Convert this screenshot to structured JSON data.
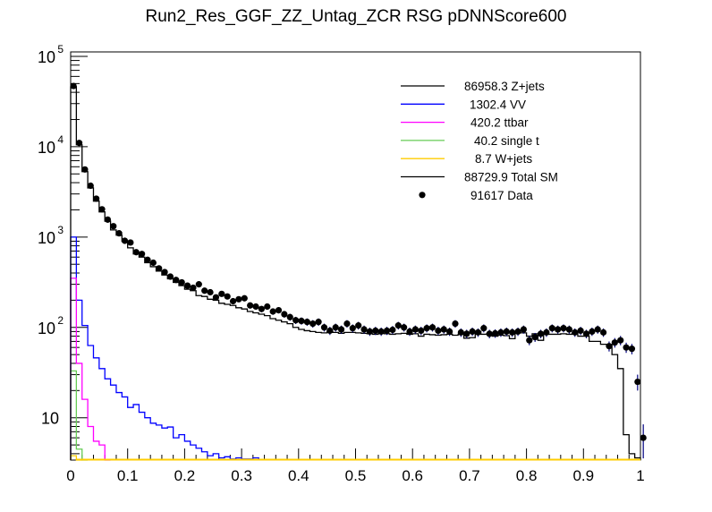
{
  "chart_data": {
    "type": "histogram",
    "title": "Run2_Res_GGF_ZZ_Untag_ZCR RSG  pDNNScore600",
    "xlabel": "",
    "ylabel": "",
    "xlim": [
      0,
      1
    ],
    "ylim": [
      3.4,
      112000
    ],
    "yscale": "log",
    "bin_width": 0.01,
    "x_ticks": [
      "0",
      "0.1",
      "0.2",
      "0.3",
      "0.4",
      "0.5",
      "0.6",
      "0.7",
      "0.8",
      "0.9",
      "1"
    ],
    "y_ticks": [
      {
        "base": "10",
        "exp": "5"
      },
      {
        "base": "10",
        "exp": "4"
      },
      {
        "base": "10",
        "exp": "3"
      },
      {
        "base": "10",
        "exp": "2"
      },
      {
        "base": "10",
        "exp": ""
      }
    ],
    "legend_position": "top-right",
    "legend": [
      {
        "label": "86958.3 Z+jets",
        "color": "#000000",
        "kind": "line"
      },
      {
        "label": "1302.4 VV",
        "color": "#0000ff",
        "kind": "line"
      },
      {
        "label": "420.2 ttbar",
        "color": "#ff00ff",
        "kind": "line"
      },
      {
        "label": "40.2 single t",
        "color": "#66cc55",
        "kind": "line"
      },
      {
        "label": "8.7 W+jets",
        "color": "#ffcc00",
        "kind": "line"
      },
      {
        "label": "88729.9 Total SM",
        "color": "#000000",
        "kind": "line"
      },
      {
        "label": "91617 Data",
        "color": "#000000",
        "kind": "marker"
      }
    ],
    "series": [
      {
        "name": "VV",
        "color": "#0000ff",
        "values": [
          1000,
          200,
          105,
          63,
          46,
          35,
          27,
          23,
          19,
          17,
          13,
          14,
          11.5,
          10,
          8.7,
          8.3,
          7.7,
          7.9,
          6,
          6.5,
          5.5,
          5,
          4.6,
          4.2,
          3.8,
          4,
          3.6,
          3.7,
          3.5,
          3.6,
          3.5,
          3.5,
          3.6
        ]
      },
      {
        "name": "ttbar",
        "color": "#ff00ff",
        "values": [
          350,
          40,
          16,
          8,
          5.5,
          5,
          3
        ]
      },
      {
        "name": "single t",
        "color": "#66cc55",
        "values": [
          33,
          4.5,
          3
        ]
      },
      {
        "name": "W+jets",
        "color": "#ffcc00",
        "values": [
          3.8,
          3
        ]
      },
      {
        "name": "Total SM",
        "color": "#000000",
        "values": [
          46000,
          10500,
          5300,
          3500,
          2500,
          1900,
          1500,
          1200,
          1050,
          900,
          760,
          650,
          600,
          520,
          470,
          420,
          380,
          345,
          315,
          290,
          265,
          255,
          225,
          220,
          205,
          200,
          185,
          180,
          175,
          165,
          160,
          150,
          145,
          140,
          135,
          125,
          120,
          115,
          110,
          100,
          95,
          92,
          90,
          88,
          87,
          90,
          88,
          86,
          88,
          88,
          87,
          86,
          85,
          84,
          86,
          85,
          84,
          85,
          86,
          84,
          85,
          80,
          84,
          83,
          82,
          83,
          84,
          82,
          84,
          76,
          77,
          90,
          84,
          85,
          80,
          82,
          81,
          75,
          88,
          87,
          80,
          85,
          72,
          84,
          84,
          84,
          85,
          84,
          86,
          80,
          80,
          70,
          70,
          65,
          65,
          50,
          35,
          6.5,
          4,
          3.6
        ]
      },
      {
        "name": "Data",
        "color": "#000000",
        "values": [
          47000,
          11000,
          5600,
          3700,
          2660,
          2030,
          1560,
          1320,
          1100,
          910,
          870,
          680,
          650,
          560,
          520,
          450,
          410,
          365,
          335,
          315,
          290,
          275,
          300,
          255,
          245,
          215,
          235,
          220,
          195,
          205,
          210,
          175,
          170,
          160,
          170,
          150,
          155,
          140,
          130,
          120,
          118,
          115,
          110,
          115,
          100,
          92,
          100,
          95,
          110,
          98,
          105,
          95,
          90,
          92,
          90,
          92,
          94,
          105,
          100,
          90,
          95,
          92,
          98,
          100,
          92,
          95,
          90,
          110,
          88,
          85,
          90,
          88,
          98,
          85,
          86,
          88,
          90,
          88,
          90,
          95,
          72,
          78,
          85,
          88,
          98,
          95,
          98,
          95,
          88,
          92,
          85,
          90,
          95,
          88,
          62,
          68,
          72,
          60,
          58,
          25,
          6
        ]
      }
    ]
  }
}
